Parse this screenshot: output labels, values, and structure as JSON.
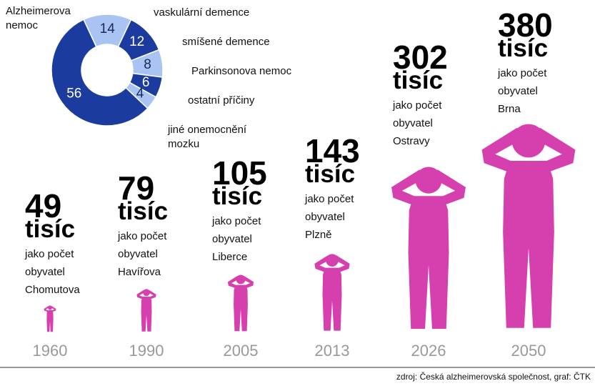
{
  "chart_data": [
    {
      "type": "donut",
      "categories": [
        "Alzheimerova nemoc",
        "vaskulární demence",
        "smíšené demence",
        "Parkinsonova nemoc",
        "ostatní příčiny",
        "jiné onemocnění mozku"
      ],
      "values": [
        56,
        14,
        12,
        8,
        6,
        4
      ],
      "colors": [
        "#1b3b9e",
        "#a9c3f3",
        "#1b3b9e",
        "#a9c3f3",
        "#1b3b9e",
        "#a9c3f3"
      ]
    },
    {
      "type": "pictogram",
      "categories": [
        "1960",
        "1990",
        "2005",
        "2013",
        "2026",
        "2050"
      ],
      "values": [
        49,
        79,
        105,
        143,
        302,
        380
      ],
      "unit": "tisíc",
      "descriptions": [
        [
          "jako počet",
          "obyvatel",
          "Chomutova"
        ],
        [
          "jako počet",
          "obyvatel",
          "Havířova"
        ],
        [
          "jako počet",
          "obyvatel",
          "Liberce"
        ],
        [
          "jako počet",
          "obyvatel",
          "Plzně"
        ],
        [
          "jako počet",
          "obyvatel",
          "Ostravy"
        ],
        [
          "jako počet",
          "obyvatel",
          "Brna"
        ]
      ],
      "color": "#d63fae"
    }
  ],
  "source": "zdroj: Česká alzheimerovská společnost, graf: ČTK"
}
